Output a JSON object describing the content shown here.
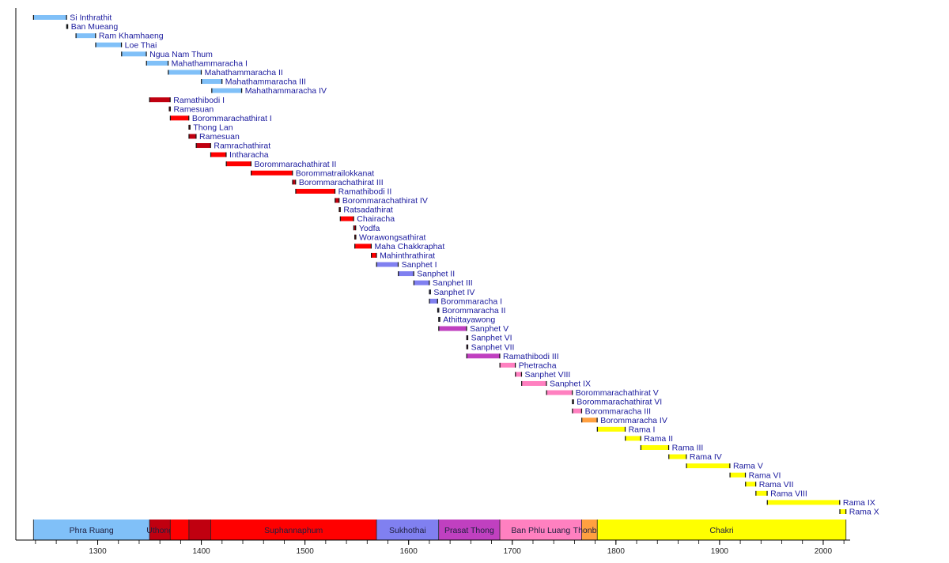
{
  "chart_data": {
    "type": "bar",
    "orientation": "horizontal-timeline",
    "title": "",
    "xlabel": "",
    "ylabel": "",
    "xlim": [
      1221,
      2026
    ],
    "x_ticks": [
      1300,
      1400,
      1500,
      1600,
      1700,
      1800,
      1900,
      2000
    ],
    "minor_tick_step": 20,
    "grid": false,
    "label_color": "#1a1a9e",
    "colors": {
      "phra_ruang": "#80c0f8",
      "uthong": "#c00010",
      "suphannaphum": "#ff0000",
      "sukhothai": "#8080f0",
      "prasat_thong": "#c040c0",
      "ban_phlu_luang": "#ff80c0",
      "thonburi": "#ffa040",
      "chakri": "#ffff00"
    },
    "reigns": [
      {
        "name": "Si Inthrathit",
        "start": 1238,
        "end": 1270,
        "color": "phra_ruang"
      },
      {
        "name": "Ban Mueang",
        "start": 1270,
        "end": 1271,
        "color": "phra_ruang"
      },
      {
        "name": "Ram Khamhaeng",
        "start": 1279,
        "end": 1298,
        "color": "phra_ruang"
      },
      {
        "name": "Loe Thai",
        "start": 1298,
        "end": 1323,
        "color": "phra_ruang"
      },
      {
        "name": "Ngua Nam Thum",
        "start": 1323,
        "end": 1347,
        "color": "phra_ruang"
      },
      {
        "name": "Mahathammaracha I",
        "start": 1347,
        "end": 1368,
        "color": "phra_ruang"
      },
      {
        "name": "Mahathammaracha II",
        "start": 1368,
        "end": 1400,
        "color": "phra_ruang"
      },
      {
        "name": "Mahathammaracha III",
        "start": 1400,
        "end": 1420,
        "color": "phra_ruang"
      },
      {
        "name": "Mahathammaracha IV",
        "start": 1410,
        "end": 1439,
        "color": "phra_ruang"
      },
      {
        "name": "Ramathibodi I",
        "start": 1350,
        "end": 1370,
        "color": "uthong"
      },
      {
        "name": "Ramesuan",
        "start": 1369,
        "end": 1370,
        "color": "uthong"
      },
      {
        "name": "Borommarachathirat I",
        "start": 1370,
        "end": 1388,
        "color": "suphannaphum"
      },
      {
        "name": "Thong Lan",
        "start": 1388,
        "end": 1388.5,
        "color": "suphannaphum"
      },
      {
        "name": "Ramesuan",
        "start": 1388,
        "end": 1395,
        "color": "uthong"
      },
      {
        "name": "Ramrachathirat",
        "start": 1395,
        "end": 1409,
        "color": "uthong"
      },
      {
        "name": "Intharacha",
        "start": 1409,
        "end": 1424,
        "color": "suphannaphum"
      },
      {
        "name": "Borommarachathirat II",
        "start": 1424,
        "end": 1448,
        "color": "suphannaphum"
      },
      {
        "name": "Borommatrailokkanat",
        "start": 1448,
        "end": 1488,
        "color": "suphannaphum"
      },
      {
        "name": "Borommarachathirat III",
        "start": 1488,
        "end": 1491,
        "color": "uthong"
      },
      {
        "name": "Ramathibodi II",
        "start": 1491,
        "end": 1529,
        "color": "suphannaphum"
      },
      {
        "name": "Borommarachathirat IV",
        "start": 1529,
        "end": 1533,
        "color": "uthong"
      },
      {
        "name": "Ratsadathirat",
        "start": 1533,
        "end": 1534,
        "color": "suphannaphum"
      },
      {
        "name": "Chairacha",
        "start": 1534,
        "end": 1547,
        "color": "suphannaphum"
      },
      {
        "name": "Yodfa",
        "start": 1547,
        "end": 1549,
        "color": "uthong"
      },
      {
        "name": "Worawongsathirat",
        "start": 1548,
        "end": 1549,
        "color": "suphannaphum"
      },
      {
        "name": "Maha Chakkraphat",
        "start": 1548,
        "end": 1564,
        "color": "suphannaphum"
      },
      {
        "name": "Mahinthrathirat",
        "start": 1564,
        "end": 1569,
        "color": "suphannaphum"
      },
      {
        "name": "Sanphet I",
        "start": 1569,
        "end": 1590,
        "color": "sukhothai"
      },
      {
        "name": "Sanphet II",
        "start": 1590,
        "end": 1605,
        "color": "sukhothai"
      },
      {
        "name": "Sanphet III",
        "start": 1605,
        "end": 1620,
        "color": "sukhothai"
      },
      {
        "name": "Sanphet IV",
        "start": 1620,
        "end": 1620.5,
        "color": "sukhothai"
      },
      {
        "name": "Borommaracha I",
        "start": 1620,
        "end": 1628,
        "color": "sukhothai"
      },
      {
        "name": "Borommaracha II",
        "start": 1628,
        "end": 1629,
        "color": "sukhothai"
      },
      {
        "name": "Athittayawong",
        "start": 1629,
        "end": 1629.5,
        "color": "sukhothai"
      },
      {
        "name": "Sanphet V",
        "start": 1629,
        "end": 1656,
        "color": "prasat_thong"
      },
      {
        "name": "Sanphet VI",
        "start": 1656,
        "end": 1656.5,
        "color": "prasat_thong"
      },
      {
        "name": "Sanphet VII",
        "start": 1656,
        "end": 1656.5,
        "color": "prasat_thong"
      },
      {
        "name": "Ramathibodi III",
        "start": 1656,
        "end": 1688,
        "color": "prasat_thong"
      },
      {
        "name": "Phetracha",
        "start": 1688,
        "end": 1703,
        "color": "ban_phlu_luang"
      },
      {
        "name": "Sanphet VIII",
        "start": 1703,
        "end": 1709,
        "color": "ban_phlu_luang"
      },
      {
        "name": "Sanphet IX",
        "start": 1709,
        "end": 1733,
        "color": "ban_phlu_luang"
      },
      {
        "name": "Borommarachathirat V",
        "start": 1733,
        "end": 1758,
        "color": "ban_phlu_luang"
      },
      {
        "name": "Borommarachathirat VI",
        "start": 1758,
        "end": 1758.5,
        "color": "ban_phlu_luang"
      },
      {
        "name": "Borommaracha III",
        "start": 1758,
        "end": 1767,
        "color": "ban_phlu_luang"
      },
      {
        "name": "Borommaracha IV",
        "start": 1767,
        "end": 1782,
        "color": "thonburi"
      },
      {
        "name": "Rama I",
        "start": 1782,
        "end": 1809,
        "color": "chakri"
      },
      {
        "name": "Rama II",
        "start": 1809,
        "end": 1824,
        "color": "chakri"
      },
      {
        "name": "Rama III",
        "start": 1824,
        "end": 1851,
        "color": "chakri"
      },
      {
        "name": "Rama IV",
        "start": 1851,
        "end": 1868,
        "color": "chakri"
      },
      {
        "name": "Rama V",
        "start": 1868,
        "end": 1910,
        "color": "chakri"
      },
      {
        "name": "Rama VI",
        "start": 1910,
        "end": 1925,
        "color": "chakri"
      },
      {
        "name": "Rama VII",
        "start": 1925,
        "end": 1935,
        "color": "chakri"
      },
      {
        "name": "Rama VIII",
        "start": 1935,
        "end": 1946,
        "color": "chakri"
      },
      {
        "name": "Rama IX",
        "start": 1946,
        "end": 2016,
        "color": "chakri"
      },
      {
        "name": "Rama X",
        "start": 2016,
        "end": 2022,
        "color": "chakri"
      }
    ],
    "dynasties": [
      {
        "name": "Phra Ruang",
        "start": 1238,
        "end": 1350,
        "color": "phra_ruang"
      },
      {
        "name": "Uthong",
        "start": 1350,
        "end": 1370,
        "color": "uthong"
      },
      {
        "name": "",
        "start": 1370,
        "end": 1388,
        "color": "suphannaphum"
      },
      {
        "name": "",
        "start": 1388,
        "end": 1409,
        "color": "uthong"
      },
      {
        "name": "Suphannaphum",
        "start": 1409,
        "end": 1569,
        "color": "suphannaphum"
      },
      {
        "name": "Sukhothai",
        "start": 1569,
        "end": 1629,
        "color": "sukhothai"
      },
      {
        "name": "Prasat Thong",
        "start": 1629,
        "end": 1688,
        "color": "prasat_thong"
      },
      {
        "name": "Ban Phlu Luang",
        "start": 1688,
        "end": 1767,
        "color": "ban_phlu_luang"
      },
      {
        "name": "Thonburi",
        "start": 1767,
        "end": 1782,
        "color": "thonburi"
      },
      {
        "name": "Chakri",
        "start": 1782,
        "end": 2022,
        "color": "chakri"
      }
    ]
  }
}
